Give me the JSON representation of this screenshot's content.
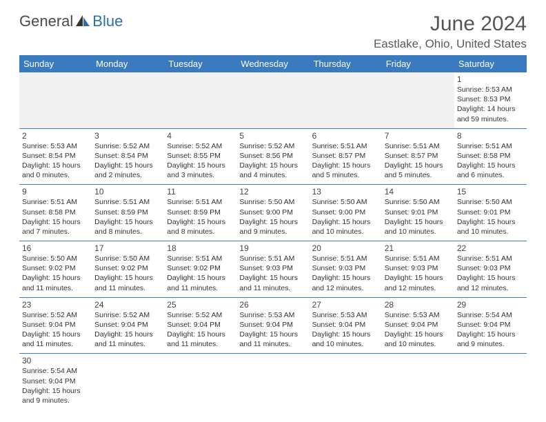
{
  "branding": {
    "logo_part1": "General",
    "logo_part2": "Blue"
  },
  "title": "June 2024",
  "location": "Eastlake, Ohio, United States",
  "colors": {
    "header_bg": "#3a7bbf",
    "border": "#3a7bbf",
    "logo_blue": "#2b6fb0"
  },
  "weekdays": [
    "Sunday",
    "Monday",
    "Tuesday",
    "Wednesday",
    "Thursday",
    "Friday",
    "Saturday"
  ],
  "weeks": [
    [
      null,
      null,
      null,
      null,
      null,
      null,
      {
        "n": "1",
        "sr": "5:53 AM",
        "ss": "8:53 PM",
        "dl": "14 hours and 59 minutes."
      }
    ],
    [
      {
        "n": "2",
        "sr": "5:53 AM",
        "ss": "8:54 PM",
        "dl": "15 hours and 0 minutes."
      },
      {
        "n": "3",
        "sr": "5:52 AM",
        "ss": "8:54 PM",
        "dl": "15 hours and 2 minutes."
      },
      {
        "n": "4",
        "sr": "5:52 AM",
        "ss": "8:55 PM",
        "dl": "15 hours and 3 minutes."
      },
      {
        "n": "5",
        "sr": "5:52 AM",
        "ss": "8:56 PM",
        "dl": "15 hours and 4 minutes."
      },
      {
        "n": "6",
        "sr": "5:51 AM",
        "ss": "8:57 PM",
        "dl": "15 hours and 5 minutes."
      },
      {
        "n": "7",
        "sr": "5:51 AM",
        "ss": "8:57 PM",
        "dl": "15 hours and 5 minutes."
      },
      {
        "n": "8",
        "sr": "5:51 AM",
        "ss": "8:58 PM",
        "dl": "15 hours and 6 minutes."
      }
    ],
    [
      {
        "n": "9",
        "sr": "5:51 AM",
        "ss": "8:58 PM",
        "dl": "15 hours and 7 minutes."
      },
      {
        "n": "10",
        "sr": "5:51 AM",
        "ss": "8:59 PM",
        "dl": "15 hours and 8 minutes."
      },
      {
        "n": "11",
        "sr": "5:51 AM",
        "ss": "8:59 PM",
        "dl": "15 hours and 8 minutes."
      },
      {
        "n": "12",
        "sr": "5:50 AM",
        "ss": "9:00 PM",
        "dl": "15 hours and 9 minutes."
      },
      {
        "n": "13",
        "sr": "5:50 AM",
        "ss": "9:00 PM",
        "dl": "15 hours and 10 minutes."
      },
      {
        "n": "14",
        "sr": "5:50 AM",
        "ss": "9:01 PM",
        "dl": "15 hours and 10 minutes."
      },
      {
        "n": "15",
        "sr": "5:50 AM",
        "ss": "9:01 PM",
        "dl": "15 hours and 10 minutes."
      }
    ],
    [
      {
        "n": "16",
        "sr": "5:50 AM",
        "ss": "9:02 PM",
        "dl": "15 hours and 11 minutes."
      },
      {
        "n": "17",
        "sr": "5:50 AM",
        "ss": "9:02 PM",
        "dl": "15 hours and 11 minutes."
      },
      {
        "n": "18",
        "sr": "5:51 AM",
        "ss": "9:02 PM",
        "dl": "15 hours and 11 minutes."
      },
      {
        "n": "19",
        "sr": "5:51 AM",
        "ss": "9:03 PM",
        "dl": "15 hours and 11 minutes."
      },
      {
        "n": "20",
        "sr": "5:51 AM",
        "ss": "9:03 PM",
        "dl": "15 hours and 12 minutes."
      },
      {
        "n": "21",
        "sr": "5:51 AM",
        "ss": "9:03 PM",
        "dl": "15 hours and 12 minutes."
      },
      {
        "n": "22",
        "sr": "5:51 AM",
        "ss": "9:03 PM",
        "dl": "15 hours and 12 minutes."
      }
    ],
    [
      {
        "n": "23",
        "sr": "5:52 AM",
        "ss": "9:04 PM",
        "dl": "15 hours and 11 minutes."
      },
      {
        "n": "24",
        "sr": "5:52 AM",
        "ss": "9:04 PM",
        "dl": "15 hours and 11 minutes."
      },
      {
        "n": "25",
        "sr": "5:52 AM",
        "ss": "9:04 PM",
        "dl": "15 hours and 11 minutes."
      },
      {
        "n": "26",
        "sr": "5:53 AM",
        "ss": "9:04 PM",
        "dl": "15 hours and 11 minutes."
      },
      {
        "n": "27",
        "sr": "5:53 AM",
        "ss": "9:04 PM",
        "dl": "15 hours and 10 minutes."
      },
      {
        "n": "28",
        "sr": "5:53 AM",
        "ss": "9:04 PM",
        "dl": "15 hours and 10 minutes."
      },
      {
        "n": "29",
        "sr": "5:54 AM",
        "ss": "9:04 PM",
        "dl": "15 hours and 9 minutes."
      }
    ],
    [
      {
        "n": "30",
        "sr": "5:54 AM",
        "ss": "9:04 PM",
        "dl": "15 hours and 9 minutes."
      },
      null,
      null,
      null,
      null,
      null,
      null
    ]
  ],
  "labels": {
    "sunrise": "Sunrise: ",
    "sunset": "Sunset: ",
    "daylight": "Daylight: "
  }
}
